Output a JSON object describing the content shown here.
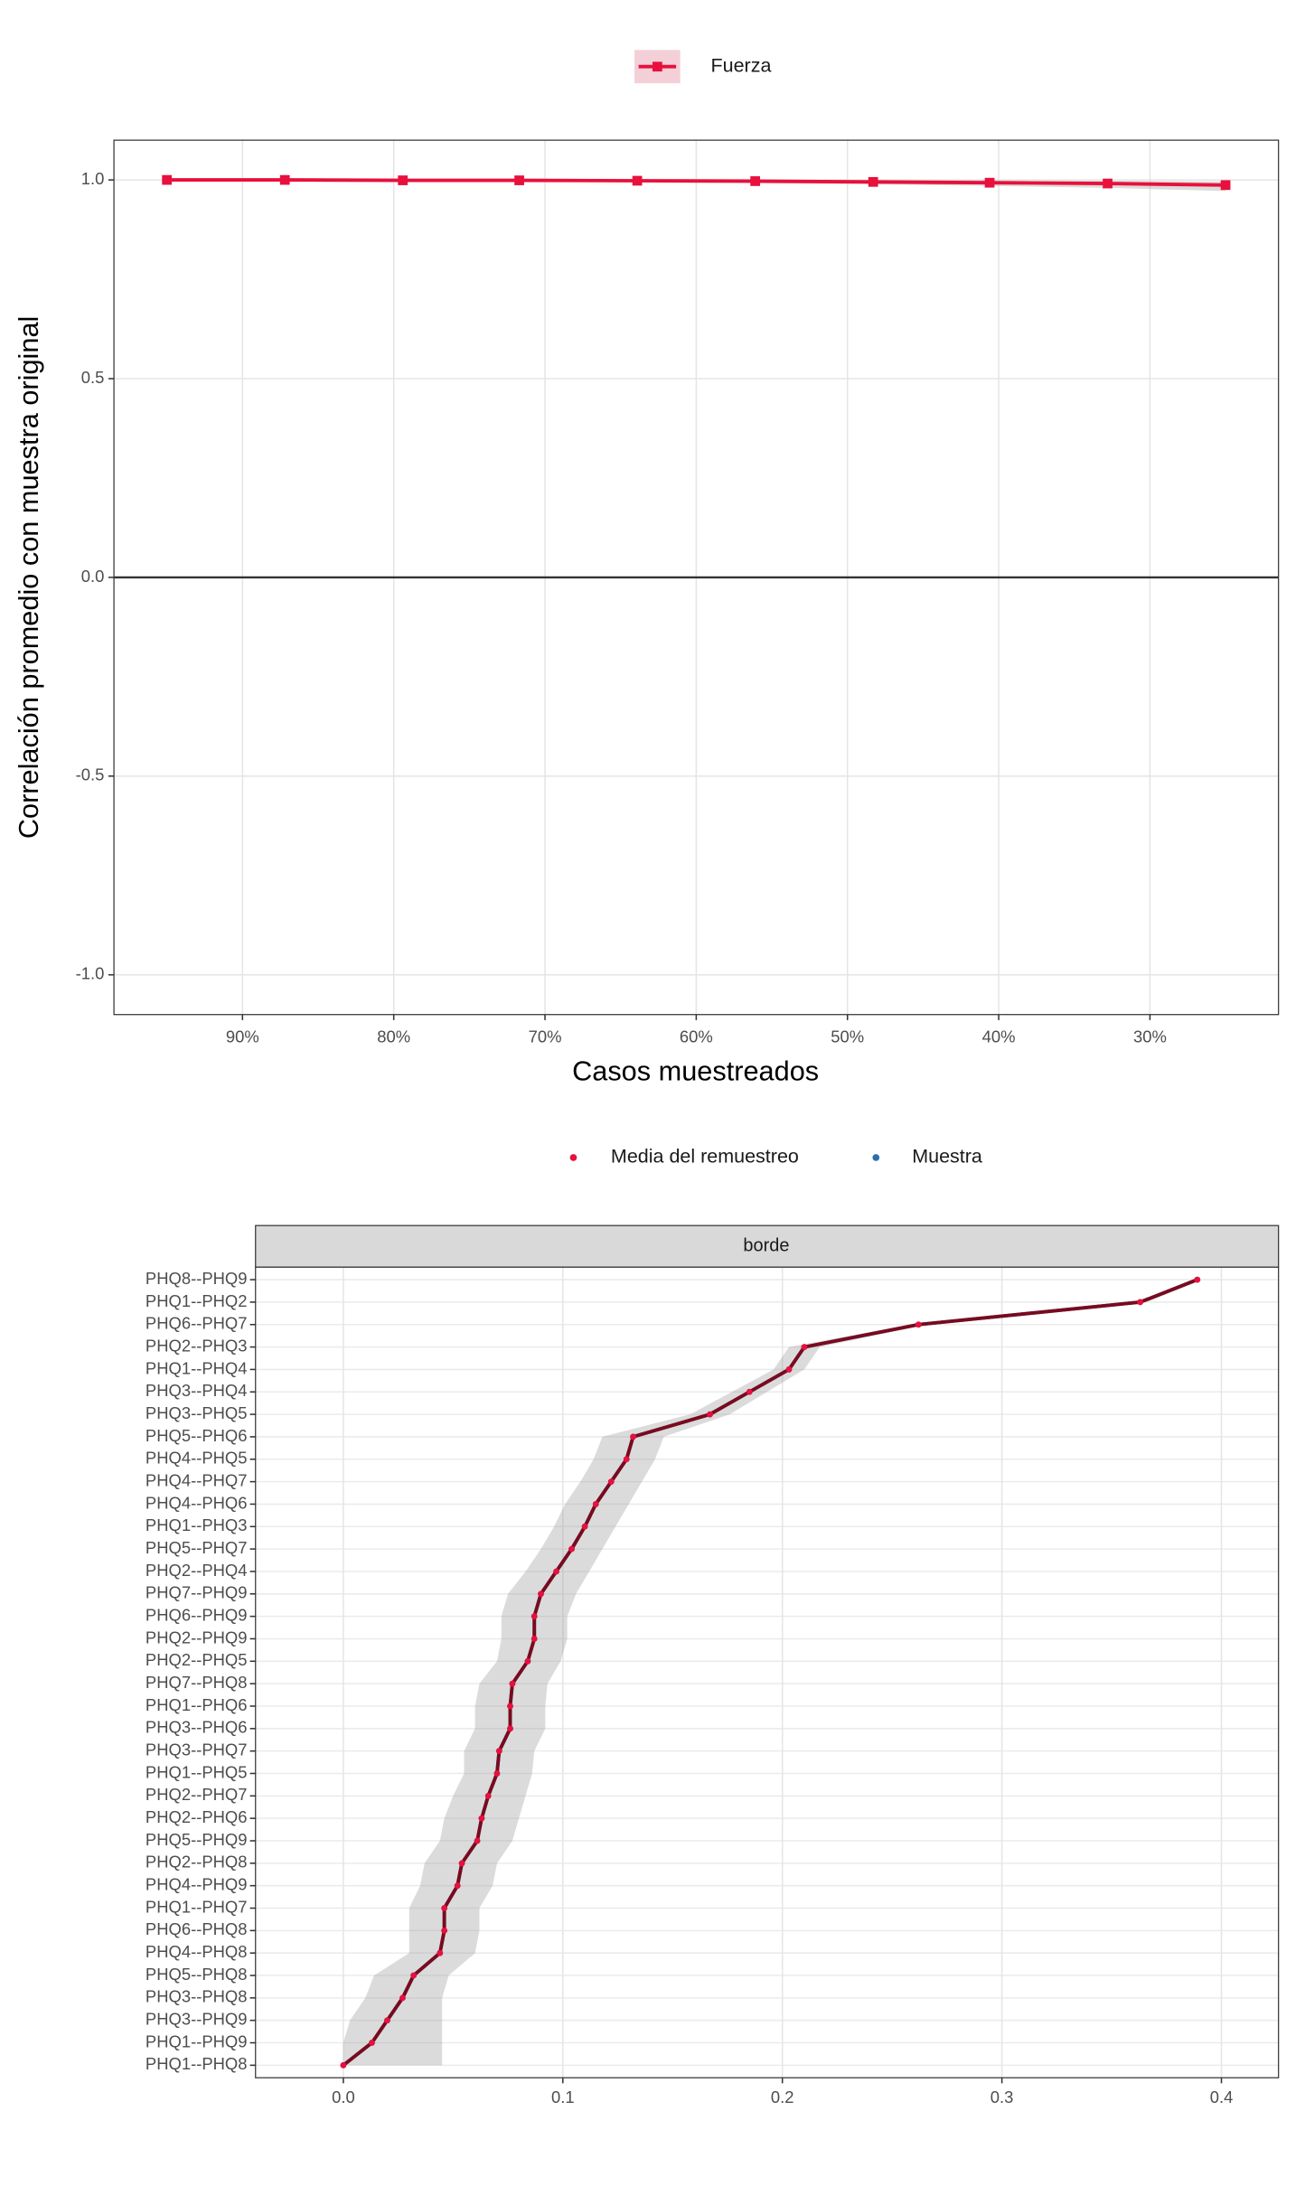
{
  "chart_data": [
    {
      "type": "line",
      "legend": "top",
      "x": [
        95,
        87.2,
        79.4,
        71.7,
        63.9,
        56.1,
        48.3,
        40.6,
        32.8,
        25
      ],
      "series": [
        {
          "name": "Fuerza",
          "color": "#e8103c",
          "values": [
            1.0,
            1.0,
            0.999,
            0.999,
            0.998,
            0.997,
            0.995,
            0.993,
            0.991,
            0.987
          ],
          "ci_lower": [
            0.999,
            0.998,
            0.997,
            0.996,
            0.994,
            0.992,
            0.989,
            0.985,
            0.98,
            0.972
          ],
          "ci_upper": [
            1.0,
            1.0,
            1.0,
            1.0,
            1.0,
            1.0,
            1.0,
            0.999,
            0.998,
            0.996
          ]
        }
      ],
      "xlim": [
        98.5,
        21.5
      ],
      "xticks": [
        {
          "value": 90,
          "label": "90%"
        },
        {
          "value": 80,
          "label": "80%"
        },
        {
          "value": 70,
          "label": "70%"
        },
        {
          "value": 60,
          "label": "60%"
        },
        {
          "value": 50,
          "label": "50%"
        },
        {
          "value": 40,
          "label": "40%"
        },
        {
          "value": 30,
          "label": "30%"
        }
      ],
      "ylim": [
        -1.1,
        1.1
      ],
      "yticks": [
        {
          "value": -1,
          "label": "-1.0"
        },
        {
          "value": -0.5,
          "label": "-0.5"
        },
        {
          "value": 0,
          "label": "0.0"
        },
        {
          "value": 0.5,
          "label": "0.5"
        },
        {
          "value": 1,
          "label": "1.0"
        }
      ],
      "hline": 0,
      "grid": true,
      "xlabel": "Casos muestreados",
      "ylabel": "Correlación promedio con muestra original"
    },
    {
      "type": "line",
      "orientation": "horizontal",
      "legend": "top",
      "facet": "borde",
      "categories": [
        "PHQ1--PHQ8",
        "PHQ1--PHQ9",
        "PHQ3--PHQ9",
        "PHQ3--PHQ8",
        "PHQ5--PHQ8",
        "PHQ4--PHQ8",
        "PHQ6--PHQ8",
        "PHQ1--PHQ7",
        "PHQ4--PHQ9",
        "PHQ2--PHQ8",
        "PHQ5--PHQ9",
        "PHQ2--PHQ6",
        "PHQ2--PHQ7",
        "PHQ1--PHQ5",
        "PHQ3--PHQ7",
        "PHQ3--PHQ6",
        "PHQ1--PHQ6",
        "PHQ7--PHQ8",
        "PHQ2--PHQ5",
        "PHQ2--PHQ9",
        "PHQ6--PHQ9",
        "PHQ7--PHQ9",
        "PHQ2--PHQ4",
        "PHQ5--PHQ7",
        "PHQ1--PHQ3",
        "PHQ4--PHQ6",
        "PHQ4--PHQ7",
        "PHQ4--PHQ5",
        "PHQ5--PHQ6",
        "PHQ3--PHQ5",
        "PHQ3--PHQ4",
        "PHQ1--PHQ4",
        "PHQ2--PHQ3",
        "PHQ6--PHQ7",
        "PHQ1--PHQ2",
        "PHQ8--PHQ9"
      ],
      "series": [
        {
          "name": "Media del remuestreo",
          "color": "#e8103c",
          "values": [
            0.0,
            0.013,
            0.02,
            0.027,
            0.032,
            0.044,
            0.046,
            0.046,
            0.052,
            0.054,
            0.061,
            0.063,
            0.066,
            0.07,
            0.071,
            0.076,
            0.076,
            0.077,
            0.084,
            0.087,
            0.087,
            0.09,
            0.097,
            0.104,
            0.11,
            0.115,
            0.122,
            0.129,
            0.132,
            0.167,
            0.185,
            0.203,
            0.21,
            0.262,
            0.363,
            0.389
          ],
          "ci_lower": [
            0.0,
            0.0,
            0.003,
            0.01,
            0.014,
            0.03,
            0.03,
            0.03,
            0.035,
            0.037,
            0.044,
            0.046,
            0.05,
            0.055,
            0.055,
            0.06,
            0.06,
            0.062,
            0.07,
            0.072,
            0.072,
            0.075,
            0.083,
            0.09,
            0.096,
            0.101,
            0.108,
            0.114,
            0.118,
            0.158,
            0.177,
            0.196,
            0.203,
            0.258,
            0.361,
            0.387
          ],
          "ci_upper": [
            0.045,
            0.045,
            0.045,
            0.045,
            0.048,
            0.06,
            0.062,
            0.062,
            0.068,
            0.07,
            0.077,
            0.08,
            0.083,
            0.086,
            0.087,
            0.092,
            0.092,
            0.093,
            0.099,
            0.102,
            0.102,
            0.106,
            0.112,
            0.118,
            0.124,
            0.13,
            0.136,
            0.142,
            0.146,
            0.176,
            0.193,
            0.21,
            0.217,
            0.266,
            0.366,
            0.391
          ]
        },
        {
          "name": "Muestra",
          "color": "#2c6fb0",
          "values": [
            0.0,
            0.013,
            0.02,
            0.027,
            0.032,
            0.044,
            0.046,
            0.046,
            0.052,
            0.054,
            0.061,
            0.063,
            0.066,
            0.07,
            0.071,
            0.076,
            0.076,
            0.077,
            0.084,
            0.087,
            0.087,
            0.09,
            0.097,
            0.104,
            0.11,
            0.115,
            0.122,
            0.129,
            0.132,
            0.167,
            0.185,
            0.203,
            0.21,
            0.262,
            0.363,
            0.389
          ]
        }
      ],
      "xlim": [
        -0.04,
        0.426
      ],
      "xticks": [
        {
          "value": 0,
          "label": "0.0"
        },
        0.1,
        0.2,
        0.3,
        0.4
      ],
      "grid": true
    }
  ]
}
